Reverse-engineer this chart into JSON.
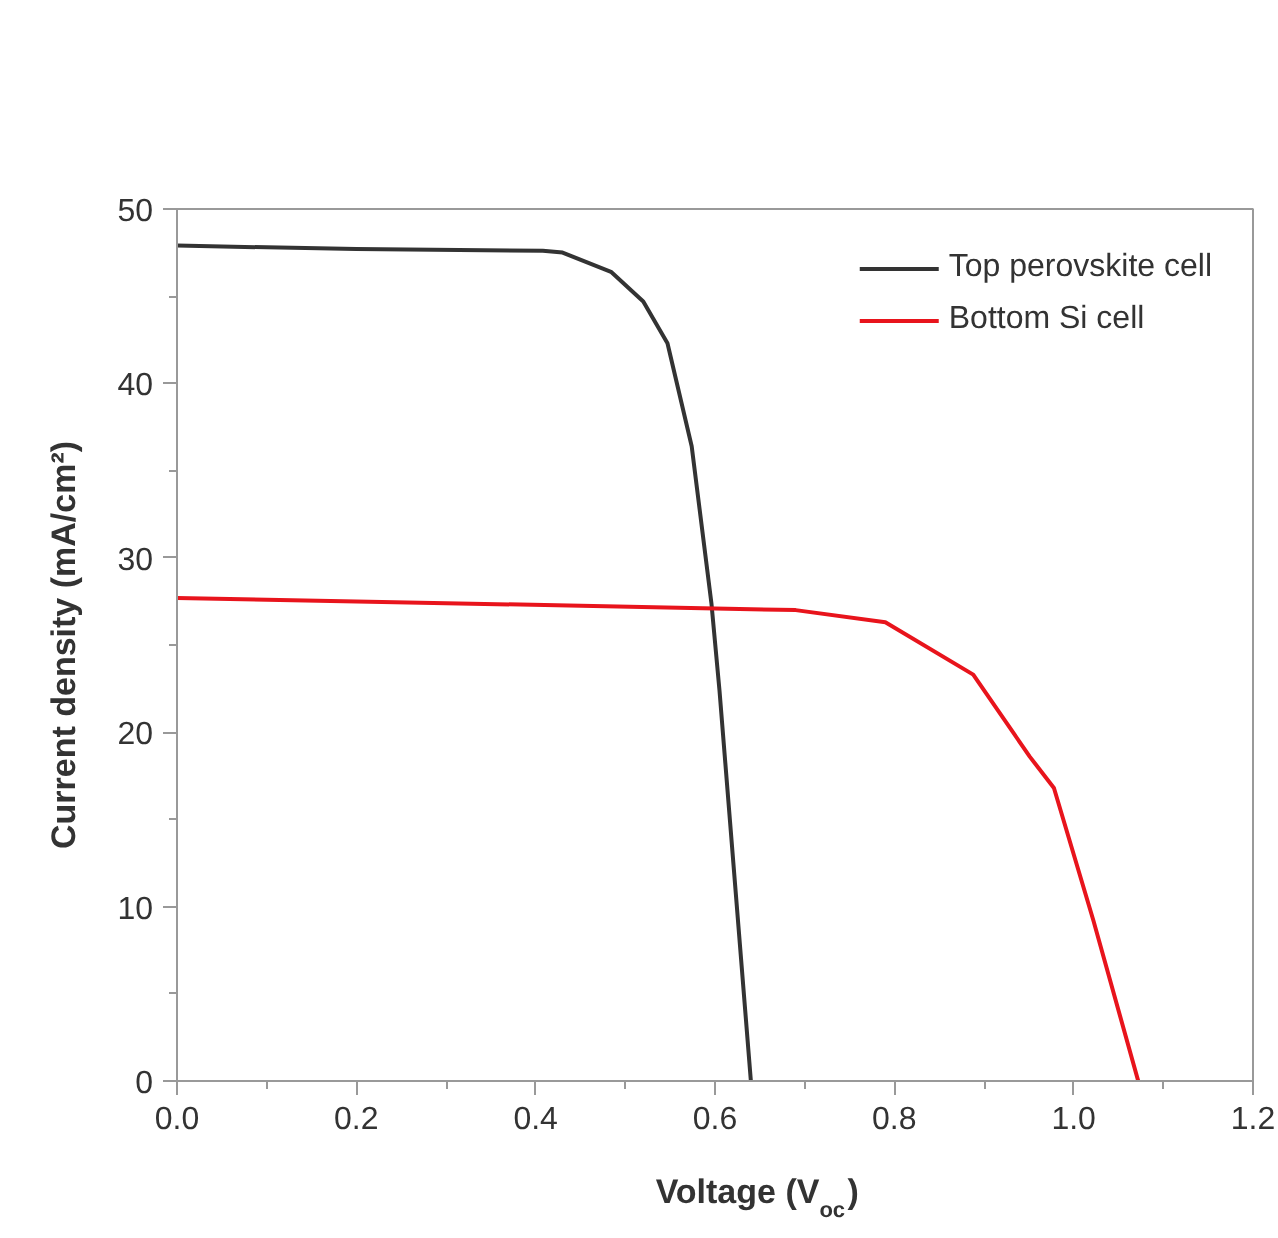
{
  "chart_data": {
    "type": "line",
    "xlabel": "Voltage (V$_{oc}$)",
    "ylabel": "Current density (mA/cm²)",
    "xlim": [
      0,
      1.2
    ],
    "ylim": [
      0,
      50
    ],
    "xticks": [
      {
        "value": 0,
        "label": "0.0"
      },
      {
        "value": 0.1,
        "label": null
      },
      {
        "value": 0.2,
        "label": "0.2"
      },
      {
        "value": 0.3,
        "label": null
      },
      {
        "value": 0.4,
        "label": "0.4"
      },
      {
        "value": 0.5,
        "label": null
      },
      {
        "value": 0.6,
        "label": "0.6"
      },
      {
        "value": 0.7,
        "label": null
      },
      {
        "value": 0.8,
        "label": "0.8"
      },
      {
        "value": 0.9,
        "label": null
      },
      {
        "value": 1.0,
        "label": "1.0"
      },
      {
        "value": 1.1,
        "label": null
      },
      {
        "value": 1.2,
        "label": "1.2"
      }
    ],
    "yticks": [
      0,
      {
        "value": 5,
        "label": null
      },
      10,
      {
        "value": 15,
        "label": null
      },
      20,
      {
        "value": 25,
        "label": null
      },
      30,
      {
        "value": 35,
        "label": null
      },
      40,
      {
        "value": 45,
        "label": null
      },
      50
    ],
    "grid": false,
    "legend": "top right",
    "marker": "none",
    "line_style": "solid",
    "series": [
      {
        "name": "Top perovskite cell",
        "color": "#333333",
        "x": [
          0,
          0.2,
          0.408,
          0.43,
          0.484,
          0.52,
          0.547,
          0.574,
          0.596,
          0.605,
          0.64
        ],
        "values": [
          47.9,
          47.7,
          47.6,
          47.5,
          46.4,
          44.7,
          42.3,
          36.4,
          27.4,
          22.4,
          0
        ]
      },
      {
        "name": "Bottom Si cell",
        "color": "#e8141c",
        "x": [
          0,
          0.3,
          0.6,
          0.69,
          0.79,
          0.888,
          0.951,
          0.978,
          1.022,
          1.072
        ],
        "values": [
          27.7,
          27.4,
          27.1,
          27.0,
          26.3,
          23.3,
          18.6,
          16.8,
          9.2,
          0
        ]
      }
    ]
  }
}
